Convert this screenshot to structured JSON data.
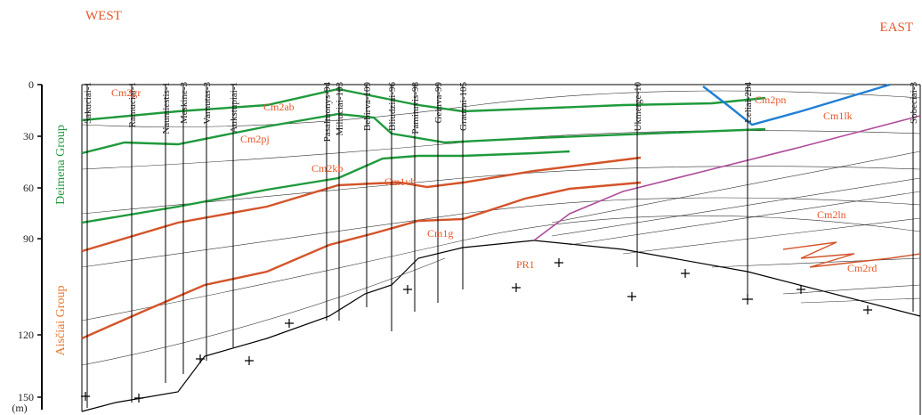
{
  "header": {
    "west": "WEST",
    "east": "EAST"
  },
  "wells": [
    "Sakuciai-1",
    "Ramuciai-1",
    "Naumiestis-1",
    "Meskine-3",
    "Varnutas-3",
    "Aukstupiai-1",
    "Pasaltuonys-94",
    "Miliuciai-103",
    "Bebirva-109",
    "Bliudziai-96",
    "Pamituvis-98",
    "Geluva-99",
    "Grauzai-105",
    "Ukmerge-10",
    "Leliai-284",
    "Sobeciai-3"
  ],
  "depth_axis": {
    "ticks": [
      "0",
      "30",
      "60",
      "90",
      "120",
      "150"
    ],
    "unit": "(m)"
  },
  "groups": [
    "Deimena Group",
    "Aisčiai Group"
  ],
  "formations": [
    "Cm2gr",
    "Cm2ab",
    "Cm2pj",
    "Cm2kb",
    "Cm1vb",
    "Cm1g",
    "PR1",
    "Cm2pn",
    "Cm1lk",
    "Cm2ln",
    "Cm2rd"
  ]
}
